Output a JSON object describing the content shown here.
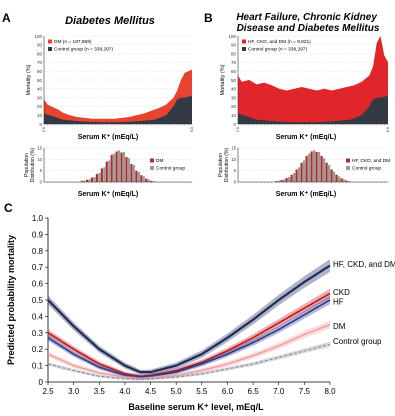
{
  "colors": {
    "dm_red": "#e8432f",
    "control_dark": "#333a44",
    "hf_red": "#e0262b",
    "ckd_red": "#c2161c",
    "hf_blue": "#2b3b8e",
    "combo_navy": "#1e2c5a",
    "dm_pink": "#f19c9a",
    "control_gray": "#8c92a3",
    "hist_red": "#a8302c",
    "hist_gray": "#9a9a9a",
    "grid": "#d8d8d8"
  },
  "panel_a": {
    "label": "A",
    "title": "Diabetes Mellitus",
    "ylabel": "Mortality (%)",
    "xlabel": "Serum K⁺ (mEq/L)",
    "hist_ylabel": "Population Distribution (%)",
    "legend": [
      "DM (n = 187,869)",
      "Control group (n = 338,297)"
    ],
    "hist_legend": [
      "DM",
      "Control group"
    ]
  },
  "panel_b": {
    "label": "B",
    "title": "Heart Failure, Chronic Kidney Disease and Diabetes Mellitus",
    "ylabel": "Mortality (%)",
    "xlabel": "Serum K⁺ (mEq/L)",
    "hist_ylabel": "Population Distribution (%)",
    "legend": [
      "HF, CKD, and DM (n = 9,821)",
      "Control group (n = 338,297)"
    ],
    "hist_legend": [
      "HF, CKD, and DM",
      "Control group"
    ]
  },
  "panel_c": {
    "label": "C",
    "ylabel": "Predicted probability mortality",
    "xlabel": "Baseline serum K⁺ level, mEq/L"
  },
  "chart_data": [
    {
      "id": "A-top",
      "type": "area",
      "title": "Diabetes Mellitus",
      "xlabel": "Serum K⁺ (mEq/L)",
      "ylabel": "Mortality (%)",
      "ylim": [
        0,
        100
      ],
      "yticks": [
        0,
        10,
        20,
        30,
        40,
        50,
        60,
        70,
        80,
        90,
        100
      ],
      "xlim": [
        2.5,
        6.5
      ],
      "grid": true,
      "legend_position": "top-left",
      "series": [
        {
          "name": "DM (n = 187,869)",
          "x": [
            2.5,
            2.6,
            2.7,
            2.8,
            2.9,
            3.0,
            3.2,
            3.4,
            3.6,
            3.8,
            4.0,
            4.2,
            4.4,
            4.6,
            4.8,
            5.0,
            5.2,
            5.4,
            5.6,
            5.8,
            6.0,
            6.1,
            6.2,
            6.3,
            6.4,
            6.5
          ],
          "values": [
            28,
            22,
            20,
            18,
            16,
            13,
            10,
            8,
            7,
            6,
            6,
            6,
            6,
            7,
            8,
            10,
            12,
            15,
            18,
            22,
            30,
            38,
            50,
            58,
            60,
            62
          ]
        },
        {
          "name": "Control group (n = 338,297)",
          "x": [
            2.5,
            2.8,
            3.0,
            3.5,
            4.0,
            4.5,
            5.0,
            5.5,
            5.8,
            6.0,
            6.1,
            6.2,
            6.3,
            6.4,
            6.5
          ],
          "values": [
            12,
            8,
            5,
            3,
            2,
            2,
            3,
            5,
            10,
            20,
            28,
            30,
            30,
            31,
            32
          ]
        }
      ]
    },
    {
      "id": "B-top",
      "type": "area",
      "title": "Heart Failure, Chronic Kidney Disease and Diabetes Mellitus",
      "xlabel": "Serum K⁺ (mEq/L)",
      "ylabel": "Mortality (%)",
      "ylim": [
        0,
        100
      ],
      "yticks": [
        0,
        10,
        20,
        30,
        40,
        50,
        60,
        70,
        80,
        90,
        100
      ],
      "xlim": [
        2.5,
        6.5
      ],
      "grid": true,
      "legend_position": "top-left",
      "series": [
        {
          "name": "HF, CKD, and DM (n = 9,821)",
          "x": [
            2.5,
            2.6,
            2.8,
            3.0,
            3.2,
            3.4,
            3.6,
            3.8,
            4.0,
            4.2,
            4.4,
            4.6,
            4.8,
            5.0,
            5.2,
            5.4,
            5.6,
            5.8,
            6.0,
            6.1,
            6.2,
            6.3,
            6.4,
            6.5
          ],
          "values": [
            55,
            48,
            50,
            45,
            47,
            44,
            40,
            38,
            40,
            42,
            40,
            38,
            40,
            38,
            40,
            42,
            44,
            48,
            55,
            65,
            92,
            100,
            78,
            70
          ]
        },
        {
          "name": "Control group (n = 338,297)",
          "x": [
            2.5,
            2.8,
            3.0,
            3.5,
            4.0,
            4.5,
            5.0,
            5.5,
            5.8,
            6.0,
            6.1,
            6.2,
            6.3,
            6.4,
            6.5
          ],
          "values": [
            12,
            8,
            5,
            3,
            2,
            2,
            3,
            5,
            10,
            20,
            28,
            30,
            30,
            31,
            32
          ]
        }
      ]
    },
    {
      "id": "A-hist",
      "type": "bar",
      "xlabel": "Serum K⁺ (mEq/L)",
      "ylabel": "Population Distribution (%)",
      "ylim": [
        0,
        15
      ],
      "yticks": [
        0,
        5,
        10,
        15
      ],
      "legend_position": "right",
      "x": [
        2.8,
        3.0,
        3.2,
        3.4,
        3.6,
        3.8,
        4.0,
        4.2,
        4.4,
        4.6,
        4.8,
        5.0,
        5.2,
        5.4,
        5.6
      ],
      "series": [
        {
          "name": "DM",
          "values": [
            0.5,
            1,
            2,
            3.5,
            6,
            9,
            12,
            13.5,
            13,
            11,
            8,
            5,
            3,
            1.5,
            0.5
          ]
        },
        {
          "name": "Control group",
          "values": [
            0.6,
            1.2,
            2.2,
            4,
            6.5,
            9.5,
            12.5,
            14,
            13.2,
            10.5,
            7.5,
            4.5,
            2.5,
            1.2,
            0.4
          ]
        }
      ]
    },
    {
      "id": "B-hist",
      "type": "bar",
      "xlabel": "Serum K⁺ (mEq/L)",
      "ylabel": "Population Distribution (%)",
      "ylim": [
        0,
        15
      ],
      "yticks": [
        0,
        5,
        10,
        15
      ],
      "legend_position": "right",
      "x": [
        2.8,
        3.0,
        3.2,
        3.4,
        3.6,
        3.8,
        4.0,
        4.2,
        4.4,
        4.6,
        4.8,
        5.0,
        5.2,
        5.4,
        5.6
      ],
      "series": [
        {
          "name": "HF, CKD, and DM",
          "values": [
            0.4,
            0.9,
            1.8,
            3.2,
            5.5,
            8.5,
            11.5,
            13.5,
            13.2,
            11.5,
            8.5,
            5.5,
            3.2,
            1.6,
            0.6
          ]
        },
        {
          "name": "Control group",
          "values": [
            0.6,
            1.2,
            2.2,
            4,
            6.5,
            9.5,
            12.5,
            14,
            13.2,
            10.5,
            7.5,
            4.5,
            2.5,
            1.2,
            0.4
          ]
        }
      ]
    },
    {
      "id": "C",
      "type": "line",
      "xlabel": "Baseline serum K⁺ level, mEq/L",
      "ylabel": "Predicted probability mortality",
      "xlim": [
        2.5,
        8.0
      ],
      "ylim": [
        0,
        1.0
      ],
      "xticks": [
        2.5,
        3.0,
        3.5,
        4.0,
        4.5,
        5.0,
        5.5,
        6.0,
        6.5,
        7.0,
        7.5,
        8.0
      ],
      "yticks": [
        0,
        0.1,
        0.2,
        0.3,
        0.4,
        0.5,
        0.6,
        0.7,
        0.8,
        0.9,
        1.0
      ],
      "grid": false,
      "series": [
        {
          "name": "HF, CKD, and DM",
          "x": [
            2.5,
            3.0,
            3.5,
            4.0,
            4.3,
            4.5,
            5.0,
            5.5,
            6.0,
            6.5,
            7.0,
            7.5,
            8.0
          ],
          "values": [
            0.5,
            0.34,
            0.2,
            0.1,
            0.06,
            0.06,
            0.1,
            0.17,
            0.27,
            0.38,
            0.5,
            0.61,
            0.71
          ]
        },
        {
          "name": "CKD",
          "x": [
            2.5,
            3.0,
            3.5,
            4.0,
            4.3,
            4.5,
            5.0,
            5.5,
            6.0,
            6.5,
            7.0,
            7.5,
            8.0
          ],
          "values": [
            0.3,
            0.2,
            0.11,
            0.05,
            0.035,
            0.04,
            0.07,
            0.12,
            0.19,
            0.27,
            0.36,
            0.45,
            0.54
          ]
        },
        {
          "name": "HF",
          "x": [
            2.5,
            3.0,
            3.5,
            4.0,
            4.3,
            4.5,
            5.0,
            5.5,
            6.0,
            6.5,
            7.0,
            7.5,
            8.0
          ],
          "values": [
            0.27,
            0.17,
            0.09,
            0.04,
            0.03,
            0.035,
            0.06,
            0.11,
            0.17,
            0.24,
            0.32,
            0.41,
            0.5
          ]
        },
        {
          "name": "DM",
          "x": [
            2.5,
            3.0,
            3.5,
            4.0,
            4.3,
            4.5,
            5.0,
            5.5,
            6.0,
            6.5,
            7.0,
            7.5,
            8.0
          ],
          "values": [
            0.17,
            0.1,
            0.055,
            0.03,
            0.02,
            0.025,
            0.04,
            0.07,
            0.11,
            0.16,
            0.22,
            0.29,
            0.35
          ]
        },
        {
          "name": "Control group",
          "x": [
            2.5,
            3.0,
            3.5,
            4.0,
            4.3,
            4.5,
            5.0,
            5.5,
            6.0,
            6.5,
            7.0,
            7.5,
            8.0
          ],
          "values": [
            0.11,
            0.07,
            0.035,
            0.02,
            0.015,
            0.018,
            0.03,
            0.05,
            0.08,
            0.11,
            0.15,
            0.19,
            0.23
          ]
        }
      ],
      "series_labels": [
        "HF, CKD, and DM",
        "CKD",
        "HF",
        "DM",
        "Control group"
      ]
    }
  ]
}
